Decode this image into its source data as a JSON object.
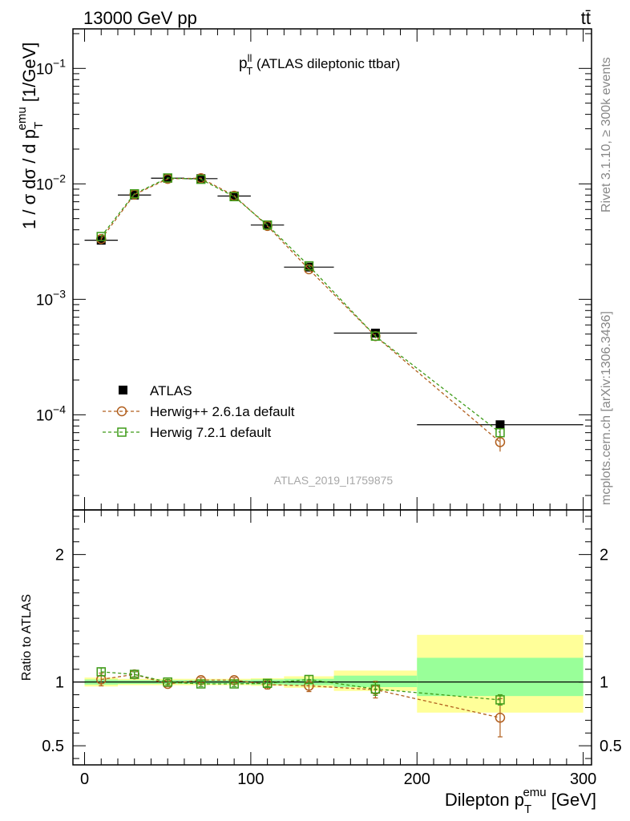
{
  "header": {
    "energy_label": "13000 GeV pp",
    "process_label": "tt̄"
  },
  "side_labels": {
    "rivet": "Rivet 3.1.10, ≥ 300k events",
    "mcplots": "mcplots.cern.ch [arXiv:1306.3436]"
  },
  "chart_data": [
    {
      "type": "line",
      "panel": "main",
      "title_main": "p",
      "title_sup": "ll",
      "title_sub": "T",
      "title_rest": " (ATLAS dileptonic ttbar)",
      "analysis_id": "ATLAS_2019_I1759875",
      "ylabel": "1 / σ dσ / d p_T^emu [1/GeV]",
      "yscale": "log",
      "ylim": [
        1.5e-05,
        0.22
      ],
      "xlim": [
        -7,
        305
      ],
      "yticks": [
        {
          "value": 0.1,
          "base": "10",
          "exp": "−1"
        },
        {
          "value": 0.01,
          "base": "10",
          "exp": "−2"
        },
        {
          "value": 0.001,
          "base": "10",
          "exp": "−3"
        },
        {
          "value": 0.0001,
          "base": "10",
          "exp": "−4"
        }
      ],
      "legend_position": "lower-left",
      "series": [
        {
          "name": "ATLAS",
          "color": "#000000",
          "marker": "filled-square",
          "x": [
            10,
            30,
            50,
            70,
            90,
            110,
            135,
            175,
            250
          ],
          "y": [
            0.00325,
            0.008,
            0.0112,
            0.0111,
            0.00785,
            0.0044,
            0.0019,
            0.00051,
            8.2e-05
          ],
          "xerr": [
            10,
            10,
            10,
            10,
            10,
            10,
            15,
            25,
            50
          ]
        },
        {
          "name": "Herwig++ 2.6.1a default",
          "color": "#b15f1e",
          "marker": "open-circle",
          "x": [
            10,
            30,
            50,
            70,
            90,
            110,
            135,
            175,
            250
          ],
          "y": [
            0.00333,
            0.00808,
            0.01105,
            0.0112,
            0.0079,
            0.00432,
            0.00182,
            0.00048,
            5.8e-05
          ],
          "yerr": [
            8e-05,
            0.0001,
            0.00012,
            0.00012,
            0.0001,
            8e-05,
            5e-05,
            2e-05,
            1e-05
          ]
        },
        {
          "name": "Herwig 7.2.1 default",
          "color": "#3e9b18",
          "marker": "open-square",
          "x": [
            10,
            30,
            50,
            70,
            90,
            110,
            135,
            175,
            250
          ],
          "y": [
            0.0035,
            0.0082,
            0.01125,
            0.01095,
            0.00775,
            0.0044,
            0.00195,
            0.00048,
            7e-05
          ],
          "yerr": [
            8e-05,
            0.0001,
            0.00012,
            0.00012,
            0.0001,
            8e-05,
            5e-05,
            1.5e-05,
            6e-06
          ]
        }
      ]
    },
    {
      "type": "line",
      "panel": "ratio",
      "ylabel": "Ratio to ATLAS",
      "xlabel_main": "Dilepton p",
      "xlabel_sub": "T",
      "xlabel_sup": "emu",
      "xlabel_unit": " [GeV]",
      "xlim": [
        -7,
        305
      ],
      "ylim": [
        0.35,
        2.35
      ],
      "xticks": [
        0,
        100,
        200,
        300
      ],
      "xtick_labels": [
        "0",
        "100",
        "200",
        "300"
      ],
      "yticks": [
        0.5,
        1,
        2
      ],
      "ytick_labels": [
        "0.5",
        "1",
        "2"
      ],
      "bins": [
        [
          0,
          20
        ],
        [
          20,
          40
        ],
        [
          40,
          60
        ],
        [
          60,
          80
        ],
        [
          80,
          100
        ],
        [
          100,
          120
        ],
        [
          120,
          150
        ],
        [
          150,
          200
        ],
        [
          200,
          300
        ]
      ],
      "band_inner": [
        [
          0.98,
          1.02
        ],
        [
          0.985,
          1.015
        ],
        [
          0.985,
          1.015
        ],
        [
          0.985,
          1.015
        ],
        [
          0.985,
          1.015
        ],
        [
          0.98,
          1.02
        ],
        [
          0.975,
          1.025
        ],
        [
          0.96,
          1.05
        ],
        [
          0.89,
          1.19
        ]
      ],
      "band_outer": [
        [
          0.965,
          1.035
        ],
        [
          0.975,
          1.025
        ],
        [
          0.975,
          1.025
        ],
        [
          0.975,
          1.025
        ],
        [
          0.975,
          1.025
        ],
        [
          0.97,
          1.03
        ],
        [
          0.955,
          1.045
        ],
        [
          0.93,
          1.09
        ],
        [
          0.76,
          1.37
        ]
      ],
      "band_inner_color": "#99ff99",
      "band_outer_color": "#ffff99",
      "series": [
        {
          "name": "Herwig++ 2.6.1a default",
          "color": "#b15f1e",
          "marker": "open-circle",
          "x": [
            10,
            30,
            50,
            70,
            90,
            110,
            135,
            175,
            250
          ],
          "y": [
            1.02,
            1.06,
            0.985,
            1.015,
            1.015,
            0.98,
            0.97,
            0.94,
            0.72
          ],
          "yerr": [
            0.05,
            0.02,
            0.02,
            0.02,
            0.02,
            0.035,
            0.045,
            0.065,
            0.15
          ]
        },
        {
          "name": "Herwig 7.2.1 default",
          "color": "#3e9b18",
          "marker": "open-square",
          "x": [
            10,
            30,
            50,
            70,
            90,
            110,
            135,
            175,
            250
          ],
          "y": [
            1.08,
            1.06,
            1.0,
            0.985,
            0.985,
            0.99,
            1.02,
            0.945,
            0.86
          ],
          "yerr": [
            0.03,
            0.02,
            0.02,
            0.02,
            0.02,
            0.025,
            0.03,
            0.05,
            0.04
          ]
        }
      ]
    }
  ]
}
